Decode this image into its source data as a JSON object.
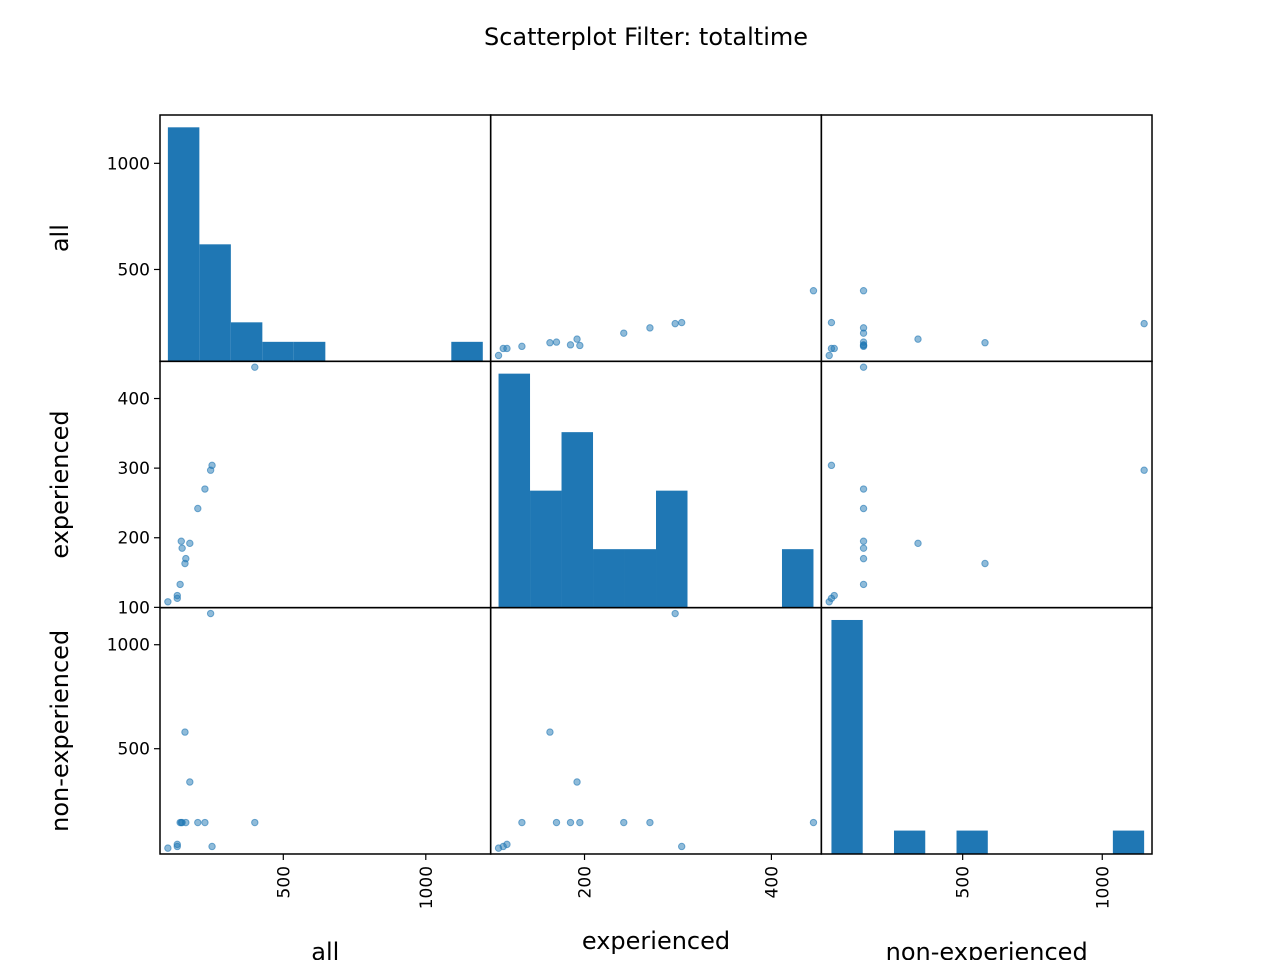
{
  "title": "Scatterplot  Filter: totaltime",
  "colors": {
    "bar": "#1f77b4",
    "point": "#1f77b4",
    "frame": "#000000"
  },
  "chart_data": {
    "type": "scatter",
    "subtype": "scatter-matrix",
    "title": "Scatterplot  Filter: totaltime",
    "variables": [
      {
        "name": "all",
        "ticks": [
          500,
          1000
        ]
      },
      {
        "name": "experienced",
        "ticks": [
          100,
          200,
          300,
          400
        ]
      },
      {
        "name": "non-experienced",
        "ticks": [
          500,
          1000
        ]
      }
    ],
    "x_tick_labels": {
      "all": [
        "500",
        "1000"
      ],
      "experienced": [
        "200",
        "400"
      ],
      "non-experienced": [
        "500",
        "1000"
      ]
    },
    "y_tick_labels": {
      "all": [
        "500",
        "1000"
      ],
      "experienced": [
        "100",
        "200",
        "300",
        "400"
      ],
      "non-experienced": [
        "500",
        "1000"
      ]
    },
    "observations": [
      {
        "all": 95,
        "experienced": 108,
        "non-experienced": 22
      },
      {
        "all": 128,
        "experienced": 113,
        "non-experienced": 30
      },
      {
        "all": 128,
        "experienced": 117,
        "non-experienced": 40
      },
      {
        "all": 138,
        "experienced": 133,
        "non-experienced": 145
      },
      {
        "all": 142,
        "experienced": 195,
        "non-experienced": 145
      },
      {
        "all": 145,
        "experienced": 185,
        "non-experienced": 145
      },
      {
        "all": 155,
        "experienced": 163,
        "non-experienced": 580
      },
      {
        "all": 158,
        "experienced": 170,
        "non-experienced": 145
      },
      {
        "all": 172,
        "experienced": 192,
        "non-experienced": 340
      },
      {
        "all": 200,
        "experienced": 242,
        "non-experienced": 145
      },
      {
        "all": 225,
        "experienced": 270,
        "non-experienced": 145
      },
      {
        "all": 245,
        "experienced": 297,
        "non-experienced": 1150
      },
      {
        "all": 250,
        "experienced": 304,
        "non-experienced": 30
      },
      {
        "all": 400,
        "experienced": 445,
        "non-experienced": 145
      }
    ],
    "histograms": {
      "all": {
        "bin_edges": [
          95,
          205.5,
          316,
          426.5,
          537,
          647.5,
          758,
          868.5,
          979,
          1089.5,
          1200
        ],
        "counts": [
          6,
          3,
          1,
          0.5,
          0.5,
          0,
          0,
          0,
          0,
          0.5
        ]
      },
      "experienced": {
        "bin_edges": [
          108,
          141.7,
          175.4,
          209.1,
          242.8,
          276.5,
          310.2,
          343.9,
          377.6,
          411.3,
          445
        ],
        "counts": [
          4,
          2,
          3,
          1,
          1,
          2,
          0,
          0,
          0,
          1
        ]
      },
      "non-experienced": {
        "bin_edges": [
          30,
          142,
          254,
          366,
          478,
          590,
          702,
          814,
          926,
          1038,
          1150
        ],
        "counts": [
          10,
          0,
          1,
          0,
          1,
          0,
          0,
          0,
          0,
          1
        ]
      }
    }
  }
}
